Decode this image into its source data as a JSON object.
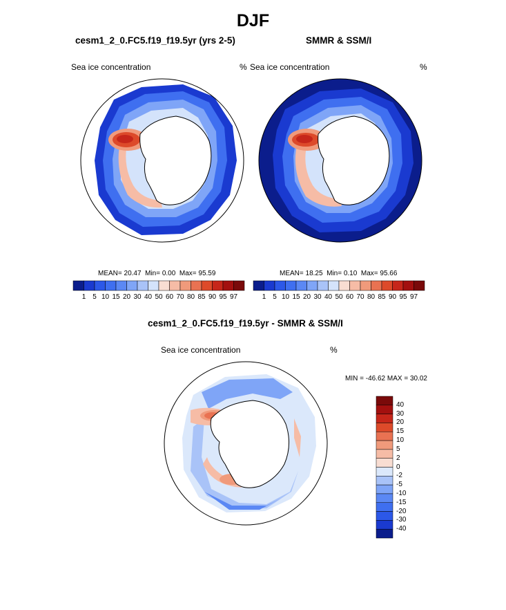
{
  "header": {
    "season": "DJF"
  },
  "panels": {
    "model": {
      "title": "cesm1_2_0.FC5.f19_f19.5yr (yrs 2-5)",
      "variable": "Sea ice concentration",
      "unit": "%",
      "stats": {
        "mean_label": "MEAN=",
        "mean": "20.47",
        "min_label": "Min=",
        "min": "0.00",
        "max_label": "Max=",
        "max": "95.59"
      }
    },
    "obs": {
      "title": "SMMR & SSM/I",
      "variable": "Sea ice concentration",
      "unit": "%",
      "stats": {
        "mean_label": "MEAN=",
        "mean": "18.25",
        "min_label": "Min=",
        "min": "0.10",
        "max_label": "Max=",
        "max": "95.66"
      }
    },
    "diff": {
      "title": "cesm1_2_0.FC5.f19_f19.5yr - SMMR & SSM/I",
      "variable": "Sea ice concentration",
      "unit": "%",
      "stats": {
        "min_label": "MIN =",
        "min": "-46.62",
        "max_label": "MAX =",
        "max": "30.02"
      }
    }
  },
  "colorbars": {
    "concentration": {
      "levels": [
        "1",
        "5",
        "10",
        "15",
        "20",
        "30",
        "40",
        "50",
        "60",
        "70",
        "80",
        "85",
        "90",
        "95",
        "97"
      ],
      "colors": [
        "#0b1d8c",
        "#1a3ad0",
        "#2c58e8",
        "#3f6ff0",
        "#5b88f4",
        "#7fa5f7",
        "#a9c3f8",
        "#d4e3fb",
        "#f8ddd2",
        "#f6bca6",
        "#f09a7b",
        "#e97252",
        "#dd4a2a",
        "#c6261a",
        "#a3100f",
        "#7a0a0a"
      ]
    },
    "difference": {
      "levels": [
        "40",
        "30",
        "20",
        "15",
        "10",
        "5",
        "2",
        "0",
        "-2",
        "-5",
        "-10",
        "-15",
        "-20",
        "-30",
        "-40"
      ],
      "colors": [
        "#7a0a0a",
        "#a3100f",
        "#c6261a",
        "#dd4a2a",
        "#e97252",
        "#f09a7b",
        "#f6bca6",
        "#f8ddd2",
        "#dbe8fb",
        "#a9c3f8",
        "#7fa5f7",
        "#5b88f4",
        "#3f6ff0",
        "#2c58e8",
        "#1a3ad0",
        "#0b1d8c"
      ]
    }
  }
}
